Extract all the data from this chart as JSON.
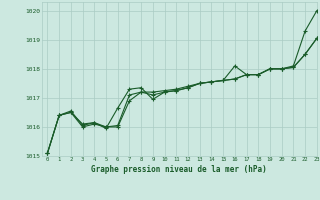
{
  "xlabel": "Graphe pression niveau de la mer (hPa)",
  "xlim": [
    -0.5,
    23
  ],
  "ylim": [
    1015,
    1020.3
  ],
  "yticks": [
    1015,
    1016,
    1017,
    1018,
    1019,
    1020
  ],
  "xticks": [
    0,
    1,
    2,
    3,
    4,
    5,
    6,
    7,
    8,
    9,
    10,
    11,
    12,
    13,
    14,
    15,
    16,
    17,
    18,
    19,
    20,
    21,
    22,
    23
  ],
  "background_color": "#cce8e0",
  "grid_color": "#aaccc4",
  "line_color": "#1a5c2a",
  "label_color": "#1a5c2a",
  "series": [
    [
      1015.1,
      1016.4,
      1016.5,
      1016.0,
      1016.1,
      1016.0,
      1016.0,
      1016.9,
      1017.2,
      1017.2,
      1017.25,
      1017.3,
      1017.4,
      1017.5,
      1017.55,
      1017.6,
      1018.1,
      1017.8,
      1017.8,
      1018.0,
      1018.0,
      1018.1,
      1019.3,
      1020.0
    ],
    [
      1015.1,
      1016.4,
      1016.55,
      1016.05,
      1016.15,
      1016.0,
      1016.05,
      1017.1,
      1017.2,
      1017.1,
      1017.2,
      1017.25,
      1017.35,
      1017.5,
      1017.55,
      1017.6,
      1017.65,
      1017.8,
      1017.8,
      1018.0,
      1018.0,
      1018.05,
      1018.5,
      1019.05
    ],
    [
      1015.1,
      1016.4,
      1016.5,
      1016.1,
      1016.15,
      1015.95,
      1016.65,
      1017.3,
      1017.35,
      1016.95,
      1017.2,
      1017.25,
      1017.35,
      1017.5,
      1017.55,
      1017.6,
      1017.65,
      1017.8,
      1017.8,
      1018.0,
      1018.0,
      1018.05,
      1018.5,
      1019.05
    ]
  ]
}
